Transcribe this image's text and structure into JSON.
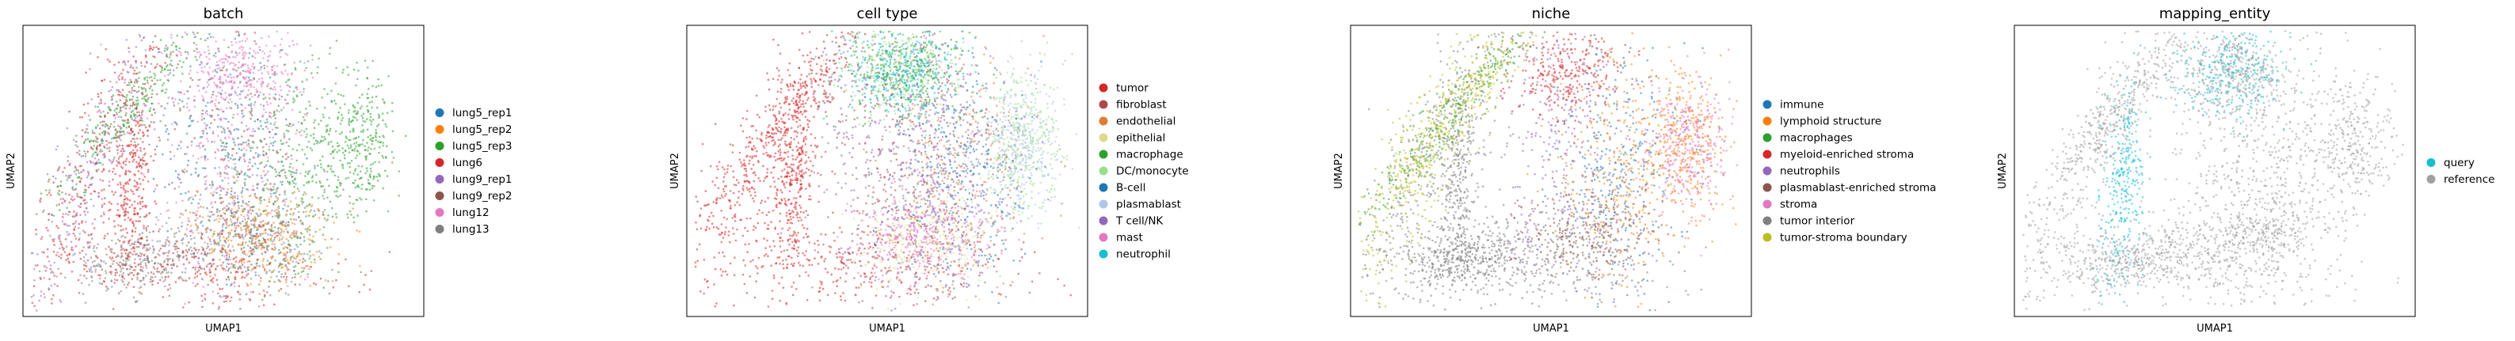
{
  "chart_data": [
    {
      "type": "scatter",
      "title": "batch",
      "xlabel": "UMAP1",
      "ylabel": "UMAP2",
      "grid": false,
      "legend_position": "right",
      "series": [
        {
          "name": "lung5_rep1",
          "color": "#1f77b4"
        },
        {
          "name": "lung5_rep2",
          "color": "#ff7f0e"
        },
        {
          "name": "lung5_rep3",
          "color": "#2ca02c"
        },
        {
          "name": "lung6",
          "color": "#d62728"
        },
        {
          "name": "lung9_rep1",
          "color": "#9467bd"
        },
        {
          "name": "lung9_rep2",
          "color": "#8c564b"
        },
        {
          "name": "lung12",
          "color": "#e377c2"
        },
        {
          "name": "lung13",
          "color": "#7f7f7f"
        }
      ]
    },
    {
      "type": "scatter",
      "title": "cell type",
      "xlabel": "UMAP1",
      "ylabel": "UMAP2",
      "grid": false,
      "legend_position": "right",
      "series": [
        {
          "name": "tumor",
          "color": "#d62728"
        },
        {
          "name": "fibroblast",
          "color": "#ad494a"
        },
        {
          "name": "endothelial",
          "color": "#e07b39"
        },
        {
          "name": "epithelial",
          "color": "#dbdb8d"
        },
        {
          "name": "macrophage",
          "color": "#2ca02c"
        },
        {
          "name": "DC/monocyte",
          "color": "#98df8a"
        },
        {
          "name": "B-cell",
          "color": "#1f77b4"
        },
        {
          "name": "plasmablast",
          "color": "#aec7e8"
        },
        {
          "name": "T cell/NK",
          "color": "#9467bd"
        },
        {
          "name": "mast",
          "color": "#e377c2"
        },
        {
          "name": "neutrophil",
          "color": "#17becf"
        }
      ]
    },
    {
      "type": "scatter",
      "title": "niche",
      "xlabel": "UMAP1",
      "ylabel": "UMAP2",
      "grid": false,
      "legend_position": "right",
      "series": [
        {
          "name": "immune",
          "color": "#1f77b4"
        },
        {
          "name": "lymphoid structure",
          "color": "#ff7f0e"
        },
        {
          "name": "macrophages",
          "color": "#2ca02c"
        },
        {
          "name": "myeloid-enriched stroma",
          "color": "#d62728"
        },
        {
          "name": "neutrophils",
          "color": "#9467bd"
        },
        {
          "name": "plasmablast-enriched stroma",
          "color": "#8c564b"
        },
        {
          "name": "stroma",
          "color": "#e377c2"
        },
        {
          "name": "tumor interior",
          "color": "#7f7f7f"
        },
        {
          "name": "tumor-stroma boundary",
          "color": "#bcbd22"
        }
      ]
    },
    {
      "type": "scatter",
      "title": "mapping_entity",
      "xlabel": "UMAP1",
      "ylabel": "UMAP2",
      "grid": false,
      "legend_position": "right",
      "series": [
        {
          "name": "query",
          "color": "#17becf"
        },
        {
          "name": "reference",
          "color": "#a0a0a0"
        }
      ]
    }
  ]
}
